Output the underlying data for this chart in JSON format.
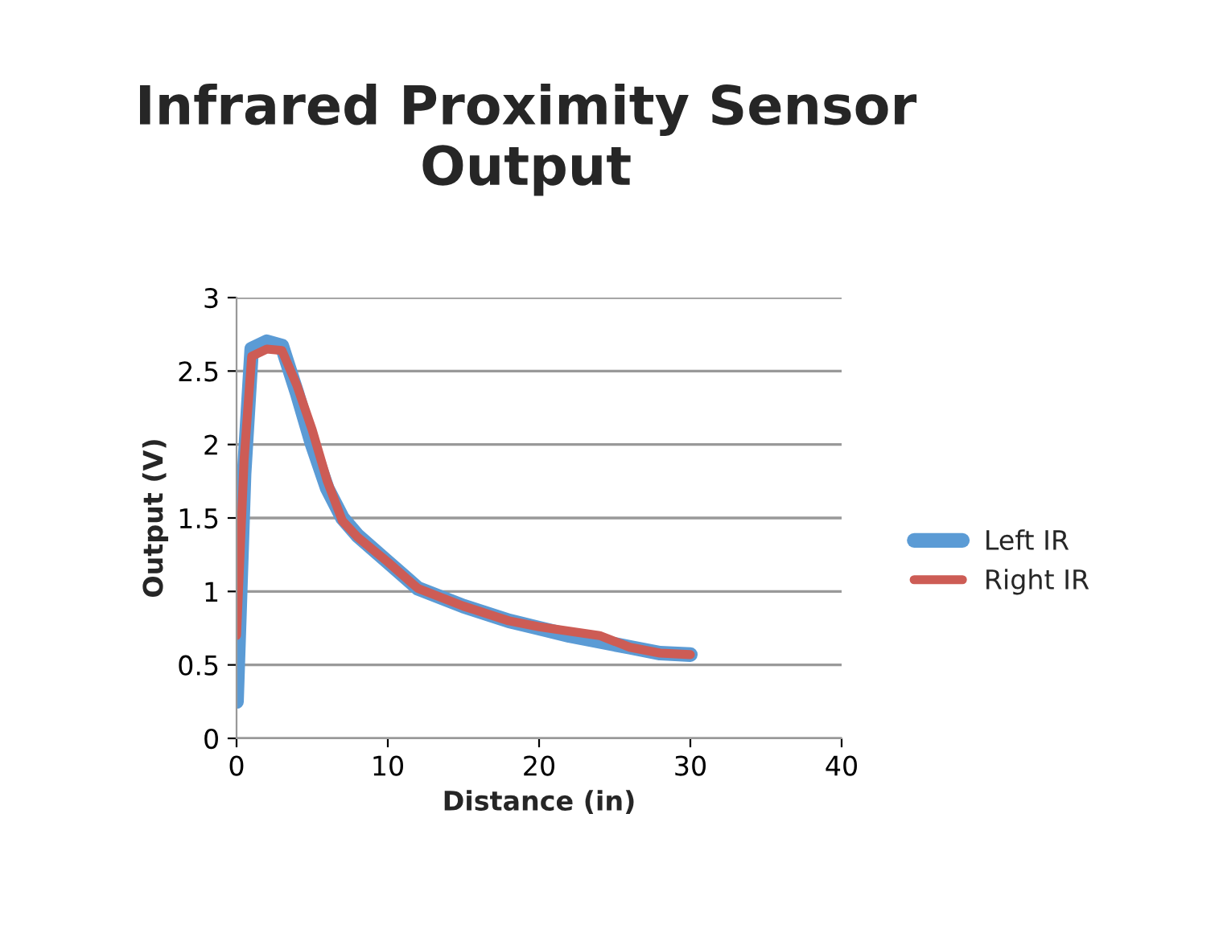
{
  "chart_data": {
    "type": "line",
    "title": "Infrared Proximity Sensor\nOutput",
    "xlabel": "Distance (in)",
    "ylabel": "Output (V)",
    "xlim": [
      0,
      40
    ],
    "xticks": [
      0,
      10,
      20,
      30,
      40
    ],
    "ylim": [
      0,
      3
    ],
    "yticks": [
      0,
      0.5,
      1,
      1.5,
      2,
      2.5,
      3
    ],
    "grid": "y",
    "legend": "right",
    "marker": "none",
    "line_style": "solid",
    "series": [
      {
        "name": "Left IR",
        "color": "#5b9bd5",
        "x": [
          0,
          0.5,
          1,
          2,
          3,
          4,
          5,
          6,
          7,
          8,
          10,
          12,
          15,
          18,
          20,
          22,
          24,
          26,
          28,
          30
        ],
        "values": [
          0.25,
          1.8,
          2.65,
          2.7,
          2.67,
          2.35,
          2.0,
          1.7,
          1.5,
          1.38,
          1.2,
          1.02,
          0.9,
          0.8,
          0.75,
          0.7,
          0.66,
          0.62,
          0.58,
          0.57
        ]
      },
      {
        "name": "Right IR",
        "color": "#cd5c55",
        "x": [
          0,
          0.5,
          1,
          2,
          3,
          4,
          5,
          6,
          7,
          8,
          10,
          12,
          15,
          18,
          20,
          22,
          24,
          26,
          28,
          30
        ],
        "values": [
          0.7,
          1.9,
          2.6,
          2.65,
          2.64,
          2.4,
          2.1,
          1.75,
          1.48,
          1.37,
          1.2,
          1.02,
          0.9,
          0.8,
          0.76,
          0.73,
          0.7,
          0.62,
          0.58,
          0.57
        ]
      }
    ]
  }
}
